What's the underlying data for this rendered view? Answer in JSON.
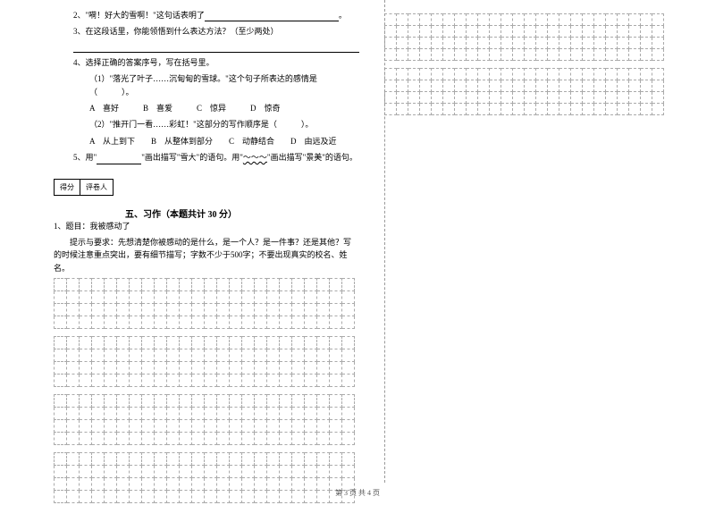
{
  "questions": {
    "q2": "2、\"嗬！好大的雪啊！\"这句话表明了",
    "q2_end": "。",
    "q3": "3、在这段话里，你能领悟到什么表达方法？（至少两处）",
    "q4": "4、选择正确的答案序号，写在括号里。",
    "q4_1": "（1）\"落光了叶子……沉甸甸的雪球。\"这个句子所表达的感情是（　　　）。",
    "q4_1_opts": "A　喜好　　　B　喜爱　　　C　惊异　　　D　惊奇",
    "q4_2": "（2）\"推开门一看……彩虹！\"这部分的写作顺序是（　　　）。",
    "q4_2_opts": "A　从上到下　　B　从整体到部分　　C　动静结合　　D　由远及近",
    "q5_a": "5、用\"",
    "q5_b": "\"画出描写\"雪大\"的语句。用\"",
    "q5_c": "\"画出描写\"景美\"的语句。"
  },
  "score_labels": {
    "score": "得分",
    "grader": "评卷人"
  },
  "section5": {
    "title": "五、习作（本题共计 30 分）",
    "topic": "1、题目：我被感动了",
    "hint": "　　提示与要求：先想清楚你被感动的是什么，是一个人？是一件事？还是其他？写的时候注意重点突出，要有细节描写；字数不少于500字；不要出现真实的校名、姓名。"
  },
  "footer": "第 3 页 共 4 页",
  "grid": {
    "left_cols": 24,
    "left_block_rows": 4,
    "left_blocks": 4,
    "right_cols": 24,
    "right_block_rows": 4,
    "right_blocks": 2
  }
}
